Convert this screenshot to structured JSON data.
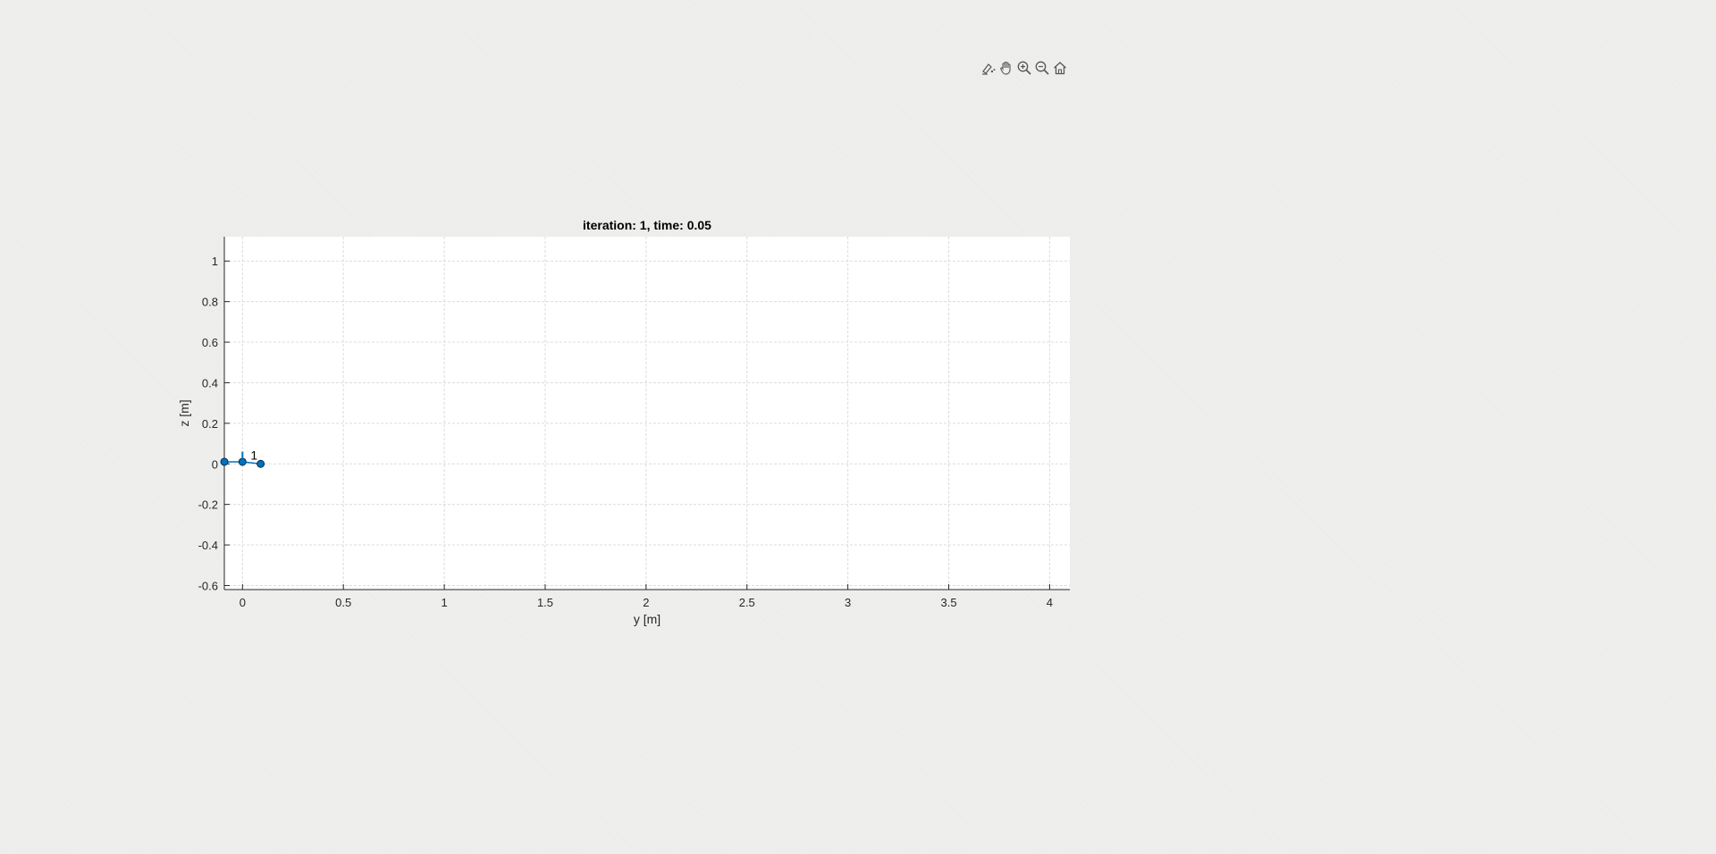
{
  "toolbar": {
    "items": [
      {
        "name": "brush-icon",
        "label": "Brush"
      },
      {
        "name": "pan-icon",
        "label": "Pan"
      },
      {
        "name": "zoom-in-icon",
        "label": "Zoom In"
      },
      {
        "name": "zoom-out-icon",
        "label": "Zoom Out"
      },
      {
        "name": "home-icon",
        "label": "Restore View"
      }
    ]
  },
  "chart_data": {
    "type": "line",
    "title": "iteration: 1, time: 0.05",
    "xlabel": "y [m]",
    "ylabel": "z [m]",
    "xlim": [
      -0.09,
      4.1
    ],
    "ylim": [
      -0.62,
      1.12
    ],
    "xticks": [
      0,
      0.5,
      1,
      1.5,
      2,
      2.5,
      3,
      3.5,
      4
    ],
    "xtick_labels": [
      "0",
      "0.5",
      "1",
      "1.5",
      "2",
      "2.5",
      "3",
      "3.5",
      "4"
    ],
    "yticks": [
      -0.6,
      -0.4,
      -0.2,
      0,
      0.2,
      0.4,
      0.6,
      0.8,
      1
    ],
    "ytick_labels": [
      "-0.6",
      "-0.4",
      "-0.2",
      "0",
      "0.2",
      "0.4",
      "0.6",
      "0.8",
      "1"
    ],
    "grid": true,
    "series": [
      {
        "x": [
          -0.09,
          0,
          0.09
        ],
        "y": [
          0.01,
          0.01,
          0
        ],
        "marker": "circle",
        "color": "#0072bd"
      }
    ],
    "vector": {
      "x": 0,
      "y": 0.01,
      "dy": 0.05,
      "color": "#0072bd"
    },
    "annotations": [
      {
        "text": "1",
        "x": 0.04,
        "y": 0.02
      }
    ]
  },
  "colors": {
    "axes_bg": "#ffffff",
    "grid": "#dcdcdc",
    "axis": "#262626",
    "series": "#0072bd"
  }
}
